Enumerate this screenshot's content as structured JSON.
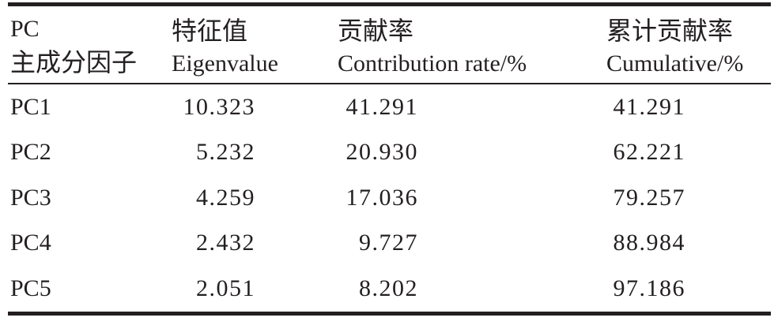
{
  "page": {
    "background_color": "#ffffff",
    "ink_color": "#231f20"
  },
  "table": {
    "columns": [
      {
        "line1": "PC",
        "line2": "主成分因子"
      },
      {
        "line1": "特征值",
        "line2": "Eigenvalue"
      },
      {
        "line1": "贡献率",
        "line2": "Contribution rate/%"
      },
      {
        "line1": "累计贡献率",
        "line2": "Cumulative/%"
      }
    ],
    "rows": [
      {
        "pc": "PC1",
        "eigenvalue": "10.323",
        "contribution_rate": "41.291",
        "cumulative": "41.291"
      },
      {
        "pc": "PC2",
        "eigenvalue": "5.232",
        "contribution_rate": "20.930",
        "cumulative": "62.221"
      },
      {
        "pc": "PC3",
        "eigenvalue": "4.259",
        "contribution_rate": "17.036",
        "cumulative": "79.257"
      },
      {
        "pc": "PC4",
        "eigenvalue": "2.432",
        "contribution_rate": "9.727",
        "cumulative": "88.984"
      },
      {
        "pc": "PC5",
        "eigenvalue": "2.051",
        "contribution_rate": "8.202",
        "cumulative": "97.186"
      }
    ]
  },
  "chart_data": {
    "type": "table",
    "columns": [
      "PC 主成分因子",
      "特征值 Eigenvalue",
      "贡献率 Contribution rate/%",
      "累计贡献率 Cumulative/%"
    ],
    "rows": [
      [
        "PC1",
        10.323,
        41.291,
        41.291
      ],
      [
        "PC2",
        5.232,
        20.93,
        62.221
      ],
      [
        "PC3",
        4.259,
        17.036,
        79.257
      ],
      [
        "PC4",
        2.432,
        9.727,
        88.984
      ],
      [
        "PC5",
        2.051,
        8.202,
        97.186
      ]
    ]
  }
}
